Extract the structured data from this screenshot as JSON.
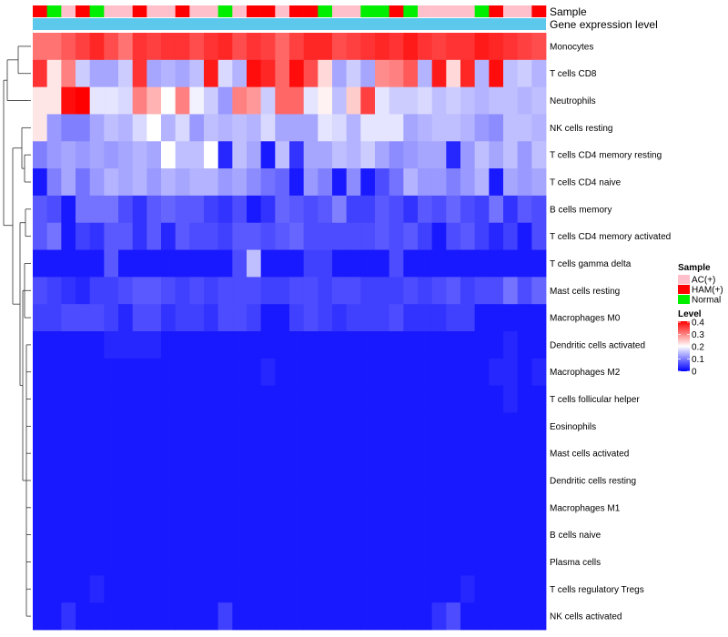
{
  "chart_data": {
    "type": "heatmap",
    "title": "",
    "annotations": {
      "sample_label": "Sample",
      "expression_label": "Gene expression level",
      "sample_groups": [
        "AC(+)",
        "HAM(+)",
        "Normal"
      ],
      "columns_sample": [
        "HAM(+)",
        "Normal",
        "AC(+)",
        "HAM(+)",
        "Normal",
        "AC(+)",
        "AC(+)",
        "HAM(+)",
        "AC(+)",
        "AC(+)",
        "HAM(+)",
        "AC(+)",
        "AC(+)",
        "Normal",
        "AC(+)",
        "HAM(+)",
        "HAM(+)",
        "AC(+)",
        "HAM(+)",
        "HAM(+)",
        "Normal",
        "AC(+)",
        "AC(+)",
        "Normal",
        "Normal",
        "HAM(+)",
        "Normal",
        "AC(+)",
        "AC(+)",
        "AC(+)",
        "AC(+)",
        "Normal",
        "HAM(+)",
        "AC(+)",
        "AC(+)",
        "HAM(+)"
      ]
    },
    "rows": [
      "Monocytes",
      "T cells CD8",
      "Neutrophils",
      "NK cells resting",
      "T cells CD4 memory resting",
      "T cells CD4 naive",
      "B cells memory",
      "T cells CD4 memory activated",
      "T cells gamma delta",
      "Mast cells resting",
      "Macrophages M0",
      "Dendritic cells activated",
      "Macrophages M2",
      "T cells follicular helper",
      "Eosinophils",
      "Mast cells activated",
      "Dendritic cells resting",
      "Macrophages M1",
      "B cells naive",
      "Plasma cells",
      "T cells regulatory  Tregs",
      "NK cells activated"
    ],
    "values": [
      [
        0.31,
        0.31,
        0.33,
        0.35,
        0.37,
        0.34,
        0.31,
        0.36,
        0.35,
        0.36,
        0.36,
        0.34,
        0.36,
        0.37,
        0.34,
        0.36,
        0.35,
        0.32,
        0.35,
        0.37,
        0.37,
        0.34,
        0.35,
        0.36,
        0.37,
        0.36,
        0.38,
        0.36,
        0.35,
        0.36,
        0.36,
        0.38,
        0.37,
        0.36,
        0.35,
        0.34
      ],
      [
        0.36,
        0.22,
        0.3,
        0.16,
        0.13,
        0.13,
        0.16,
        0.36,
        0.13,
        0.14,
        0.13,
        0.15,
        0.38,
        0.17,
        0.14,
        0.39,
        0.37,
        0.32,
        0.39,
        0.34,
        0.23,
        0.13,
        0.16,
        0.13,
        0.29,
        0.3,
        0.33,
        0.14,
        0.38,
        0.23,
        0.37,
        0.14,
        0.39,
        0.15,
        0.16,
        0.14
      ],
      [
        0.22,
        0.22,
        0.39,
        0.4,
        0.18,
        0.18,
        0.17,
        0.3,
        0.26,
        0.2,
        0.3,
        0.19,
        0.16,
        0.12,
        0.3,
        0.28,
        0.16,
        0.32,
        0.32,
        0.18,
        0.21,
        0.15,
        0.24,
        0.35,
        0.18,
        0.16,
        0.16,
        0.17,
        0.15,
        0.16,
        0.15,
        0.14,
        0.15,
        0.15,
        0.14,
        0.15
      ],
      [
        0.22,
        0.12,
        0.1,
        0.1,
        0.13,
        0.15,
        0.14,
        0.17,
        0.2,
        0.14,
        0.17,
        0.12,
        0.15,
        0.14,
        0.15,
        0.14,
        0.17,
        0.13,
        0.13,
        0.13,
        0.18,
        0.17,
        0.14,
        0.18,
        0.18,
        0.18,
        0.13,
        0.14,
        0.15,
        0.15,
        0.14,
        0.12,
        0.11,
        0.15,
        0.15,
        0.14
      ],
      [
        0.1,
        0.12,
        0.13,
        0.12,
        0.13,
        0.12,
        0.13,
        0.14,
        0.13,
        0.2,
        0.15,
        0.15,
        0.2,
        0.03,
        0.15,
        0.13,
        0.02,
        0.15,
        0.04,
        0.13,
        0.13,
        0.15,
        0.14,
        0.16,
        0.13,
        0.11,
        0.12,
        0.13,
        0.13,
        0.03,
        0.12,
        0.15,
        0.13,
        0.15,
        0.12,
        0.15
      ],
      [
        0.02,
        0.1,
        0.13,
        0.09,
        0.12,
        0.14,
        0.13,
        0.14,
        0.12,
        0.14,
        0.13,
        0.14,
        0.14,
        0.12,
        0.13,
        0.11,
        0.09,
        0.08,
        0.02,
        0.12,
        0.1,
        0.02,
        0.11,
        0.02,
        0.06,
        0.09,
        0.14,
        0.12,
        0.12,
        0.1,
        0.12,
        0.14,
        0.02,
        0.13,
        0.12,
        0.13
      ],
      [
        0.07,
        0.06,
        0.02,
        0.09,
        0.09,
        0.09,
        0.06,
        0.04,
        0.07,
        0.08,
        0.07,
        0.07,
        0.05,
        0.04,
        0.06,
        0.02,
        0.04,
        0.08,
        0.07,
        0.06,
        0.07,
        0.1,
        0.05,
        0.05,
        0.07,
        0.06,
        0.04,
        0.07,
        0.06,
        0.08,
        0.06,
        0.05,
        0.09,
        0.04,
        0.07,
        0.06
      ],
      [
        0.07,
        0.09,
        0.02,
        0.05,
        0.04,
        0.07,
        0.07,
        0.04,
        0.07,
        0.03,
        0.07,
        0.06,
        0.06,
        0.05,
        0.07,
        0.07,
        0.06,
        0.07,
        0.08,
        0.06,
        0.06,
        0.06,
        0.06,
        0.06,
        0.07,
        0.06,
        0.07,
        0.05,
        0.02,
        0.06,
        0.07,
        0.05,
        0.03,
        0.05,
        0.02,
        0.06
      ],
      [
        0.02,
        0.02,
        0.02,
        0.02,
        0.02,
        0.07,
        0.02,
        0.02,
        0.02,
        0.02,
        0.02,
        0.02,
        0.02,
        0.02,
        0.06,
        0.15,
        0.02,
        0.02,
        0.02,
        0.05,
        0.05,
        0.02,
        0.02,
        0.02,
        0.02,
        0.06,
        0.02,
        0.02,
        0.02,
        0.02,
        0.02,
        0.02,
        0.02,
        0.02,
        0.02,
        0.02
      ],
      [
        0.06,
        0.05,
        0.04,
        0.03,
        0.05,
        0.05,
        0.06,
        0.07,
        0.07,
        0.06,
        0.05,
        0.06,
        0.05,
        0.06,
        0.06,
        0.06,
        0.05,
        0.05,
        0.06,
        0.06,
        0.05,
        0.06,
        0.06,
        0.05,
        0.05,
        0.05,
        0.06,
        0.05,
        0.06,
        0.07,
        0.05,
        0.06,
        0.06,
        0.09,
        0.06,
        0.08
      ],
      [
        0.05,
        0.05,
        0.06,
        0.06,
        0.06,
        0.05,
        0.03,
        0.06,
        0.06,
        0.04,
        0.05,
        0.05,
        0.04,
        0.06,
        0.06,
        0.05,
        0.02,
        0.02,
        0.05,
        0.06,
        0.05,
        0.04,
        0.05,
        0.05,
        0.05,
        0.06,
        0.04,
        0.04,
        0.04,
        0.05,
        0.05,
        0.02,
        0.02,
        0.02,
        0.02,
        0.02
      ],
      [
        0.02,
        0.02,
        0.02,
        0.02,
        0.02,
        0.03,
        0.03,
        0.03,
        0.03,
        0.02,
        0.02,
        0.02,
        0.02,
        0.02,
        0.02,
        0.02,
        0.02,
        0.02,
        0.02,
        0.02,
        0.02,
        0.02,
        0.02,
        0.02,
        0.02,
        0.02,
        0.02,
        0.02,
        0.02,
        0.02,
        0.02,
        0.02,
        0.02,
        0.03,
        0.02,
        0.02
      ],
      [
        0.02,
        0.02,
        0.02,
        0.02,
        0.02,
        0.02,
        0.02,
        0.02,
        0.02,
        0.02,
        0.02,
        0.02,
        0.02,
        0.02,
        0.02,
        0.02,
        0.03,
        0.02,
        0.02,
        0.02,
        0.02,
        0.02,
        0.02,
        0.02,
        0.02,
        0.02,
        0.02,
        0.02,
        0.02,
        0.02,
        0.02,
        0.02,
        0.03,
        0.03,
        0.02,
        0.03
      ],
      [
        0.02,
        0.02,
        0.02,
        0.02,
        0.02,
        0.02,
        0.02,
        0.02,
        0.02,
        0.02,
        0.02,
        0.02,
        0.02,
        0.02,
        0.02,
        0.02,
        0.02,
        0.02,
        0.02,
        0.02,
        0.02,
        0.02,
        0.02,
        0.02,
        0.02,
        0.02,
        0.02,
        0.02,
        0.02,
        0.02,
        0.02,
        0.02,
        0.02,
        0.03,
        0.02,
        0.02
      ],
      [
        0.02,
        0.02,
        0.02,
        0.02,
        0.02,
        0.02,
        0.02,
        0.02,
        0.02,
        0.02,
        0.02,
        0.02,
        0.02,
        0.02,
        0.02,
        0.02,
        0.02,
        0.02,
        0.02,
        0.02,
        0.02,
        0.02,
        0.02,
        0.02,
        0.02,
        0.02,
        0.02,
        0.02,
        0.02,
        0.02,
        0.02,
        0.02,
        0.02,
        0.02,
        0.02,
        0.02
      ],
      [
        0.02,
        0.02,
        0.02,
        0.02,
        0.02,
        0.02,
        0.02,
        0.02,
        0.02,
        0.02,
        0.02,
        0.02,
        0.02,
        0.02,
        0.02,
        0.02,
        0.02,
        0.02,
        0.02,
        0.02,
        0.02,
        0.02,
        0.02,
        0.02,
        0.02,
        0.02,
        0.02,
        0.02,
        0.02,
        0.02,
        0.02,
        0.02,
        0.02,
        0.02,
        0.02,
        0.02
      ],
      [
        0.02,
        0.02,
        0.02,
        0.02,
        0.02,
        0.02,
        0.02,
        0.02,
        0.02,
        0.02,
        0.02,
        0.02,
        0.02,
        0.02,
        0.02,
        0.02,
        0.02,
        0.02,
        0.02,
        0.02,
        0.02,
        0.02,
        0.02,
        0.02,
        0.02,
        0.02,
        0.02,
        0.02,
        0.02,
        0.02,
        0.02,
        0.02,
        0.02,
        0.02,
        0.02,
        0.02
      ],
      [
        0.02,
        0.02,
        0.02,
        0.02,
        0.02,
        0.02,
        0.02,
        0.02,
        0.02,
        0.02,
        0.02,
        0.02,
        0.02,
        0.02,
        0.02,
        0.02,
        0.02,
        0.02,
        0.02,
        0.02,
        0.02,
        0.02,
        0.02,
        0.02,
        0.02,
        0.02,
        0.02,
        0.02,
        0.02,
        0.02,
        0.02,
        0.02,
        0.02,
        0.02,
        0.02,
        0.02
      ],
      [
        0.02,
        0.02,
        0.02,
        0.02,
        0.02,
        0.02,
        0.02,
        0.02,
        0.02,
        0.02,
        0.02,
        0.02,
        0.02,
        0.02,
        0.02,
        0.02,
        0.02,
        0.02,
        0.02,
        0.02,
        0.02,
        0.02,
        0.02,
        0.02,
        0.02,
        0.02,
        0.02,
        0.02,
        0.02,
        0.02,
        0.02,
        0.02,
        0.02,
        0.02,
        0.02,
        0.02
      ],
      [
        0.02,
        0.02,
        0.02,
        0.02,
        0.02,
        0.02,
        0.02,
        0.02,
        0.02,
        0.02,
        0.02,
        0.02,
        0.02,
        0.02,
        0.02,
        0.02,
        0.02,
        0.02,
        0.02,
        0.02,
        0.02,
        0.02,
        0.02,
        0.02,
        0.02,
        0.02,
        0.02,
        0.02,
        0.02,
        0.02,
        0.02,
        0.02,
        0.02,
        0.02,
        0.02,
        0.02
      ],
      [
        0.02,
        0.02,
        0.02,
        0.02,
        0.03,
        0.02,
        0.02,
        0.02,
        0.02,
        0.02,
        0.02,
        0.02,
        0.02,
        0.02,
        0.02,
        0.02,
        0.02,
        0.02,
        0.02,
        0.02,
        0.02,
        0.02,
        0.02,
        0.02,
        0.02,
        0.02,
        0.02,
        0.02,
        0.02,
        0.02,
        0.03,
        0.02,
        0.02,
        0.02,
        0.02,
        0.02
      ],
      [
        0.02,
        0.02,
        0.04,
        0.02,
        0.02,
        0.02,
        0.02,
        0.02,
        0.02,
        0.02,
        0.02,
        0.02,
        0.02,
        0.05,
        0.02,
        0.02,
        0.02,
        0.02,
        0.02,
        0.02,
        0.02,
        0.02,
        0.02,
        0.02,
        0.02,
        0.02,
        0.02,
        0.02,
        0.04,
        0.06,
        0.02,
        0.02,
        0.02,
        0.02,
        0.02,
        0.02
      ]
    ],
    "color_scale": {
      "min": 0,
      "max": 0.4,
      "low_color": "#0000ff",
      "mid_color": "#ffffff",
      "high_color": "#ff0000",
      "mid_value": 0.2
    },
    "sample_colors": {
      "AC(+)": "#ffc0cb",
      "HAM(+)": "#ff0000",
      "Normal": "#00ee00"
    },
    "expression_bar_color": "#5bc8ec",
    "legend": {
      "sample_title": "Sample",
      "level_title": "Level",
      "level_ticks": [
        "0.4",
        "0.3",
        "0.2",
        "0.1",
        "0"
      ],
      "position": "right"
    }
  }
}
